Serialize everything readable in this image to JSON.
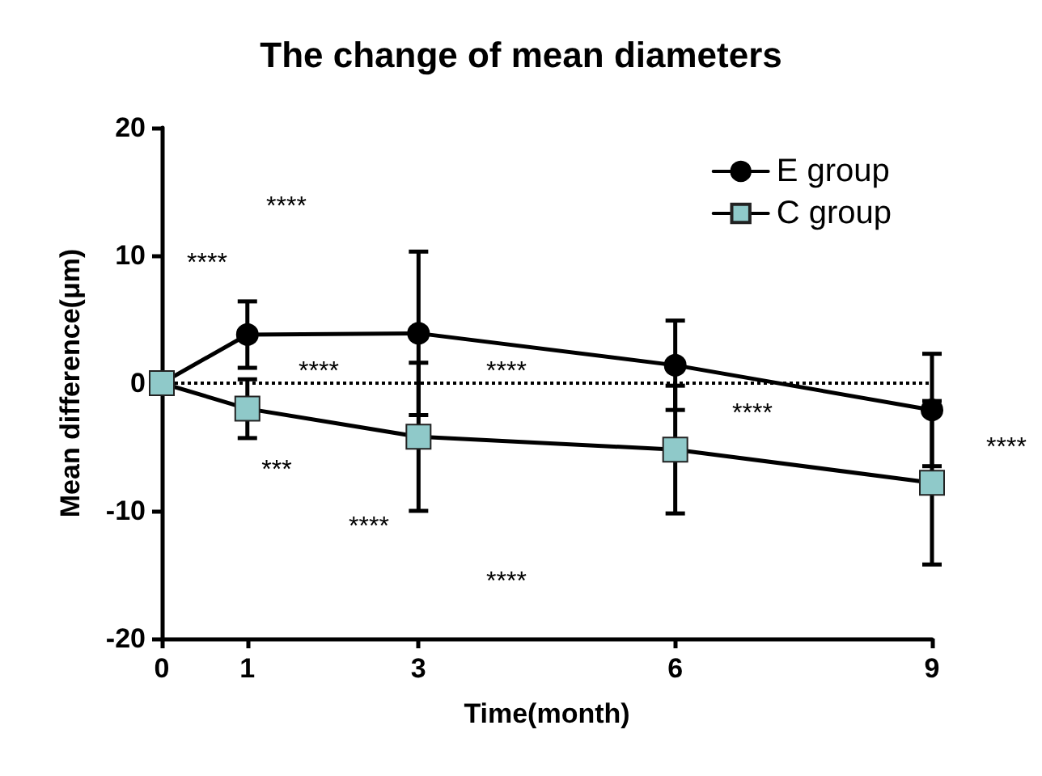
{
  "chart_data": {
    "type": "line",
    "title": "The change of mean diameters",
    "xlabel": "Time(month)",
    "ylabel": "Mean difference(μm)",
    "x": [
      0,
      1,
      3,
      6,
      9
    ],
    "xlim": [
      0,
      9
    ],
    "xticks": [
      0,
      1,
      3,
      6,
      9
    ],
    "ylim": [
      -20,
      20
    ],
    "yticks": [
      -20,
      -10,
      0,
      10,
      20
    ],
    "series": [
      {
        "name": "E group",
        "color": "#000000",
        "marker": "circle",
        "values": [
          0,
          3.8,
          3.9,
          1.4,
          -2.1
        ],
        "errors": [
          null,
          2.6,
          6.4,
          3.5,
          4.4
        ]
      },
      {
        "name": "C group",
        "color": "#8fc9c9",
        "marker": "square",
        "values": [
          0,
          -2.0,
          -4.2,
          -5.2,
          -7.8
        ],
        "errors": [
          null,
          2.3,
          5.8,
          5.0,
          6.4
        ]
      }
    ],
    "ref_lines": [
      {
        "axis": "y",
        "value": 0,
        "color": "#000000",
        "line_style": "dotted"
      }
    ],
    "annotations": [
      "****",
      "****",
      "****",
      "****",
      "***",
      "****",
      "****",
      "****",
      "****"
    ],
    "legend": "top right",
    "grid": false,
    "line_style": "solid"
  }
}
